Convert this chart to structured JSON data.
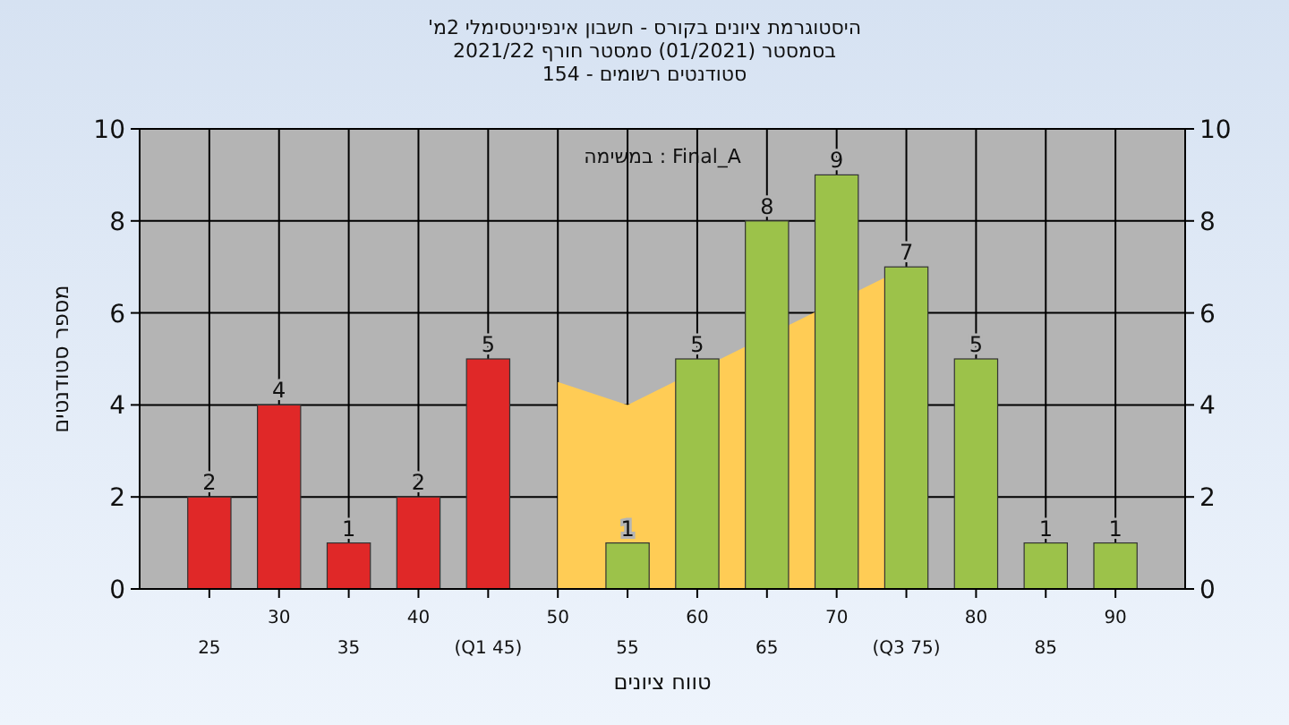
{
  "chart_data": {
    "type": "bar",
    "title": "היסטוגרמת ציונים בקורס - חשבון אינפיניטסימלי 2מ'",
    "subtitle": [
      "בסמסטר (01/2021) סמסטר חורף 2021/22",
      "סטודנטים רשומים - 154"
    ],
    "xlabel": "טווח ציונים",
    "ylabel": "מספר סטודנטים",
    "annotations": [
      "במשימה : Final_A"
    ],
    "categories": [
      "25",
      "30",
      "35",
      "40",
      "(Q1 45)",
      "50",
      "55",
      "60",
      "65",
      "70",
      "(Q3 75)",
      "80",
      "85",
      "90"
    ],
    "series": [
      {
        "type": "area",
        "color": "#ffcc55",
        "values": [
          null,
          null,
          null,
          null,
          null,
          4.5,
          4.0,
          null,
          null,
          null,
          7.0,
          null,
          null,
          null
        ]
      },
      {
        "colors": [
          "#e02828",
          "#e02828",
          "#e02828",
          "#e02828",
          "#e02828",
          null,
          "#9cc24a",
          "#9cc24a",
          "#9cc24a",
          "#9cc24a",
          "#9cc24a",
          "#9cc24a",
          "#9cc24a",
          "#9cc24a"
        ],
        "values": [
          2,
          4,
          1,
          2,
          5,
          null,
          1,
          5,
          8,
          9,
          7,
          5,
          1,
          1
        ],
        "value_labels": [
          "2",
          "4",
          "1",
          "2",
          "5",
          null,
          "1",
          "5",
          "8",
          "9",
          "7",
          "5",
          "1",
          "1"
        ]
      }
    ],
    "ylim": [
      0,
      10
    ],
    "yticks": [
      0,
      2,
      4,
      6,
      8,
      10
    ],
    "y2lim": [
      0,
      10
    ],
    "y2ticks": [
      0,
      2,
      4,
      6,
      8,
      10
    ],
    "grid": true
  }
}
